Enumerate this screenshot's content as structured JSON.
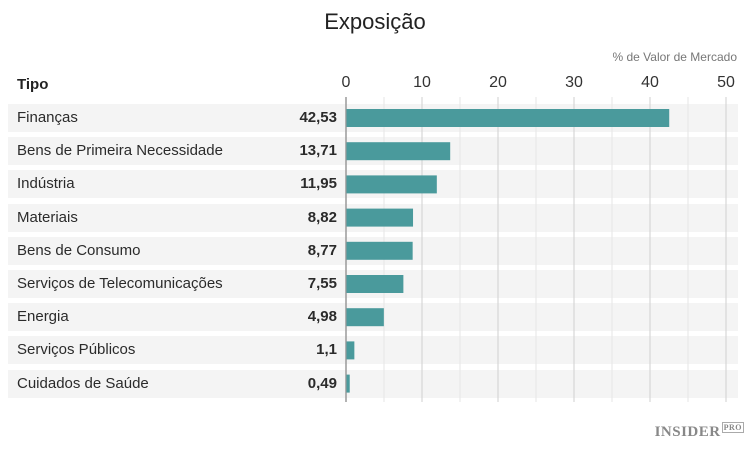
{
  "chart_data": {
    "type": "bar",
    "orientation": "horizontal",
    "title": "Exposição",
    "unit_label": "% de Valor de Mercado",
    "category_header": "Tipo",
    "categories": [
      "Finanças",
      "Bens de Primeira Necessidade",
      "Indústria",
      "Materiais",
      "Bens de Consumo",
      "Serviços de Telecomunicações",
      "Energia",
      "Serviços Públicos",
      "Cuidados de Saúde"
    ],
    "values": [
      42.53,
      13.71,
      11.95,
      8.82,
      8.77,
      7.55,
      4.98,
      1.1,
      0.49
    ],
    "value_labels": [
      "42,53",
      "13,71",
      "11,95",
      "8,82",
      "8,77",
      "7,55",
      "4,98",
      "1,1",
      "0,49"
    ],
    "xlim": [
      0,
      50
    ],
    "ticks": [
      0,
      10,
      20,
      30,
      40,
      50
    ],
    "tick_labels": [
      "0",
      "10",
      "20",
      "30",
      "40",
      "50"
    ],
    "bar_color": "#4a9a9c",
    "grid": true
  },
  "brand": {
    "name": "INSIDER",
    "suffix": "PRO"
  }
}
